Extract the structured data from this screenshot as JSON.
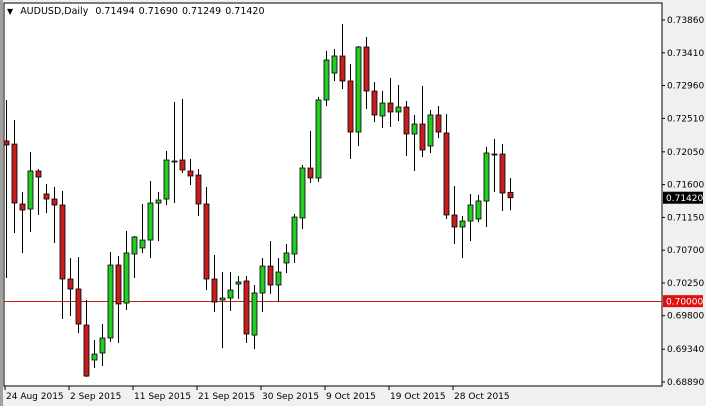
{
  "header": {
    "symbol": "AUDUSD,Daily",
    "ohlc": [
      "0.71494",
      "0.71690",
      "0.71249",
      "0.71420"
    ]
  },
  "colors": {
    "bull": "#22cc22",
    "bear": "#c81e1e",
    "level_line": "#c81e1e",
    "price_label_bg": "#000000",
    "level_label_bg": "#e01010"
  },
  "chart_data": {
    "type": "candlestick",
    "title": "AUDUSD,Daily",
    "ylim": [
      0.6889,
      0.7386
    ],
    "y_ticks": [
      "0.73860",
      "0.73410",
      "0.72960",
      "0.72510",
      "0.72050",
      "0.71600",
      "0.71150",
      "0.70700",
      "0.70250",
      "0.69800",
      "0.69340",
      "0.68890"
    ],
    "x_ticks": [
      {
        "label": "24 Aug 2015",
        "candle": 0
      },
      {
        "label": "2 Sep 2015",
        "candle": 8
      },
      {
        "label": "11 Sep 2015",
        "candle": 16
      },
      {
        "label": "21 Sep 2015",
        "candle": 24
      },
      {
        "label": "30 Sep 2015",
        "candle": 32
      },
      {
        "label": "9 Oct 2015",
        "candle": 40
      },
      {
        "label": "19 Oct 2015",
        "candle": 48
      },
      {
        "label": "28 Oct 2015",
        "candle": 56
      }
    ],
    "current_price": "0.71420",
    "horizontal_level": "0.70000",
    "candles_ohlc": [
      [
        0.72199,
        0.72762,
        0.70318,
        0.72144
      ],
      [
        0.72157,
        0.72487,
        0.70936,
        0.71347
      ],
      [
        0.71334,
        0.71498,
        0.70661,
        0.71251
      ],
      [
        0.71265,
        0.72048,
        0.70949,
        0.71787
      ],
      [
        0.71787,
        0.71814,
        0.71183,
        0.71704
      ],
      [
        0.71471,
        0.71608,
        0.7121,
        0.71402
      ],
      [
        0.71402,
        0.71567,
        0.70798,
        0.7132
      ],
      [
        0.7132,
        0.71512,
        0.69755,
        0.70304
      ],
      [
        0.70304,
        0.70592,
        0.69796,
        0.70167
      ],
      [
        0.70167,
        0.70606,
        0.69563,
        0.69686
      ],
      [
        0.69672,
        0.70016,
        0.68958,
        0.68972
      ],
      [
        0.69192,
        0.69466,
        0.69082,
        0.69274
      ],
      [
        0.69288,
        0.69686,
        0.6911,
        0.69494
      ],
      [
        0.69494,
        0.70675,
        0.69439,
        0.70496
      ],
      [
        0.70496,
        0.7062,
        0.69425,
        0.69961
      ],
      [
        0.69974,
        0.70963,
        0.69878,
        0.70661
      ],
      [
        0.70647,
        0.70894,
        0.70318,
        0.70881
      ],
      [
        0.7073,
        0.71334,
        0.70661,
        0.70839
      ],
      [
        0.70839,
        0.71649,
        0.70592,
        0.71347
      ],
      [
        0.71347,
        0.71498,
        0.70826,
        0.71389
      ],
      [
        0.71402,
        0.72061,
        0.7132,
        0.71938
      ],
      [
        0.71924,
        0.72734,
        0.71347,
        0.71924
      ],
      [
        0.71938,
        0.72775,
        0.71759,
        0.71801
      ],
      [
        0.71787,
        0.71952,
        0.71595,
        0.71718
      ],
      [
        0.71732,
        0.71814,
        0.71169,
        0.71334
      ],
      [
        0.71334,
        0.71567,
        0.70153,
        0.70304
      ],
      [
        0.70304,
        0.70633,
        0.69851,
        0.69988
      ],
      [
        0.70016,
        0.704,
        0.69354,
        0.70043
      ],
      [
        0.70043,
        0.704,
        0.69865,
        0.70153
      ],
      [
        0.70235,
        0.70345,
        0.70029,
        0.70263
      ],
      [
        0.70277,
        0.70345,
        0.69425,
        0.69549
      ],
      [
        0.69535,
        0.70222,
        0.69343,
        0.70112
      ],
      [
        0.70112,
        0.70592,
        0.69851,
        0.70482
      ],
      [
        0.70482,
        0.70826,
        0.70098,
        0.70222
      ],
      [
        0.70222,
        0.70592,
        0.69988,
        0.704
      ],
      [
        0.70524,
        0.70785,
        0.70386,
        0.70661
      ],
      [
        0.70647,
        0.71196,
        0.70524,
        0.71155
      ],
      [
        0.71142,
        0.71869,
        0.70991,
        0.71828
      ],
      [
        0.71828,
        0.72336,
        0.71622,
        0.71691
      ],
      [
        0.71691,
        0.72803,
        0.71636,
        0.72762
      ],
      [
        0.72762,
        0.73434,
        0.72679,
        0.73311
      ],
      [
        0.73132,
        0.73462,
        0.73023,
        0.73366
      ],
      [
        0.73366,
        0.73805,
        0.72913,
        0.73023
      ],
      [
        0.73023,
        0.73256,
        0.71952,
        0.72322
      ],
      [
        0.72322,
        0.73503,
        0.7213,
        0.73489
      ],
      [
        0.73489,
        0.73627,
        0.72638,
        0.72885
      ],
      [
        0.72885,
        0.73009,
        0.7246,
        0.72556
      ],
      [
        0.72542,
        0.72885,
        0.72377,
        0.7272
      ],
      [
        0.7272,
        0.73064,
        0.72391,
        0.72597
      ],
      [
        0.72597,
        0.72968,
        0.72473,
        0.72665
      ],
      [
        0.72665,
        0.72748,
        0.71993,
        0.72295
      ],
      [
        0.72295,
        0.72556,
        0.71787,
        0.72432
      ],
      [
        0.72432,
        0.72954,
        0.71979,
        0.72075
      ],
      [
        0.7213,
        0.72624,
        0.72034,
        0.72556
      ],
      [
        0.72556,
        0.72679,
        0.7224,
        0.72322
      ],
      [
        0.72309,
        0.72569,
        0.71128,
        0.71183
      ],
      [
        0.71183,
        0.71581,
        0.70785,
        0.71018
      ],
      [
        0.71018,
        0.71169,
        0.70592,
        0.711
      ],
      [
        0.711,
        0.71471,
        0.70826,
        0.7132
      ],
      [
        0.71128,
        0.71457,
        0.71087,
        0.71375
      ],
      [
        0.71375,
        0.72116,
        0.71018,
        0.72034
      ],
      [
        0.7202,
        0.72226,
        0.71498,
        0.7202
      ],
      [
        0.7202,
        0.72157,
        0.71238,
        0.71485
      ],
      [
        0.71494,
        0.7169,
        0.71249,
        0.7142
      ]
    ]
  }
}
